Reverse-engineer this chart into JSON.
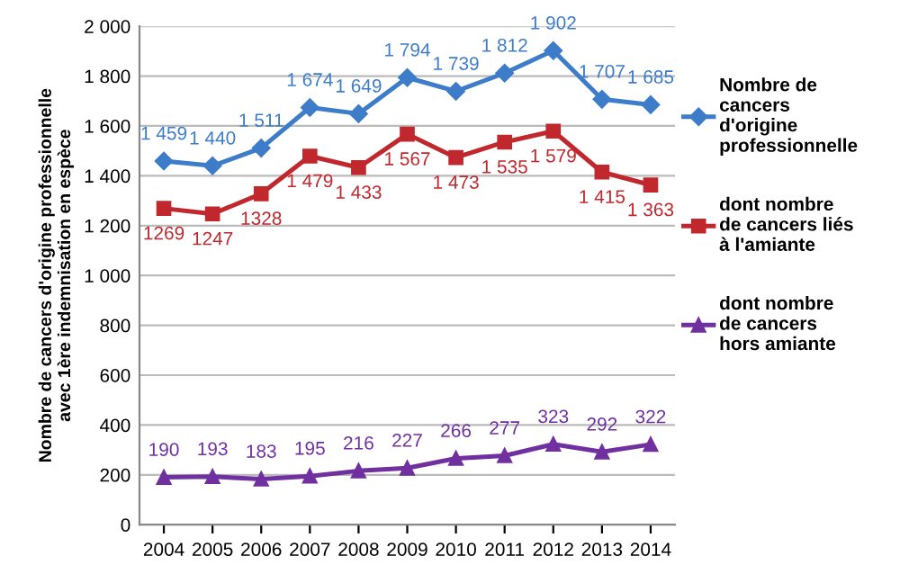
{
  "chart_data": {
    "type": "line",
    "categories": [
      "2004",
      "2005",
      "2006",
      "2007",
      "2008",
      "2009",
      "2010",
      "2011",
      "2012",
      "2013",
      "2014"
    ],
    "ylabel": "Nombre de cancers d'origine professionnelle\navec 1ère indemnisation en espèce",
    "ylim": [
      0,
      2000
    ],
    "yticks": [
      0,
      {
        "value": 200,
        "label": "200"
      },
      {
        "value": 400,
        "label": "400"
      },
      {
        "value": 600,
        "label": "600"
      },
      {
        "value": 800,
        "label": "800"
      },
      {
        "value": 1000,
        "label": "1 000"
      },
      {
        "value": 1200,
        "label": "1 200"
      },
      {
        "value": 1400,
        "label": "1 400"
      },
      {
        "value": 1600,
        "label": "1 600"
      },
      {
        "value": 1800,
        "label": "1 800"
      },
      {
        "value": 2000,
        "label": "2 000"
      }
    ],
    "grid": "y",
    "legend": "right",
    "line_style": "solid",
    "series": [
      {
        "name": "Nombre de\ncancers\nd'origine\nprofessionnelle",
        "color": "#3d7cc9",
        "marker": "diamond",
        "values": [
          1459,
          1440,
          1511,
          1674,
          1649,
          1794,
          1739,
          1812,
          1902,
          1707,
          1685
        ],
        "value_labels": [
          "1 459",
          "1 440",
          "1 511",
          "1 674",
          "1 649",
          "1 794",
          "1 739",
          "1 812",
          "1 902",
          "1 707",
          "1 685"
        ]
      },
      {
        "name": "dont nombre\nde cancers liés\nà l'amiante",
        "color": "#c0282d",
        "marker": "square",
        "values": [
          1269,
          1247,
          1328,
          1479,
          1433,
          1567,
          1473,
          1535,
          1579,
          1415,
          1363
        ],
        "value_labels": [
          "1269",
          "1247",
          "1328",
          "1 479",
          "1 433",
          "1 567",
          "1 473",
          "1 535",
          "1 579",
          "1 415",
          "1 363"
        ]
      },
      {
        "name": "dont nombre\nde cancers\nhors amiante",
        "color": "#7030a0",
        "marker": "triangle",
        "values": [
          190,
          193,
          183,
          195,
          216,
          227,
          266,
          277,
          323,
          292,
          322
        ],
        "value_labels": [
          "190",
          "193",
          "183",
          "195",
          "216",
          "227",
          "266",
          "277",
          "323",
          "292",
          "322"
        ]
      }
    ]
  }
}
